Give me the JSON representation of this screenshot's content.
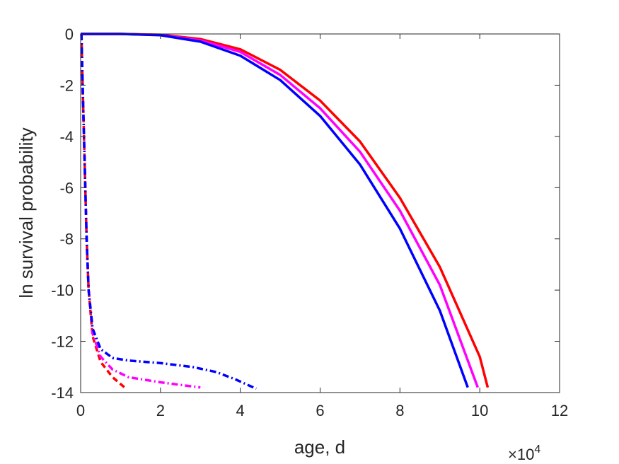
{
  "chart_data": {
    "type": "line",
    "xlabel": "age, d",
    "ylabel": "ln survival probability",
    "x_exponent_label": {
      "base": "×10",
      "power": "4"
    },
    "xlim": [
      0,
      12
    ],
    "ylim": [
      -14,
      0
    ],
    "xticks": [
      "0",
      "2",
      "4",
      "6",
      "8",
      "10",
      "12"
    ],
    "yticks": [
      "0",
      "-2",
      "-4",
      "-6",
      "-8",
      "-10",
      "-12",
      "-14"
    ],
    "grid": false,
    "legend": "none",
    "series": [
      {
        "color": "#ff0000",
        "style": "solid",
        "x": [
          0,
          1,
          2,
          3,
          4,
          5,
          6,
          7,
          8,
          9,
          10,
          10.2
        ],
        "y": [
          0,
          0,
          -0.03,
          -0.2,
          -0.6,
          -1.4,
          -2.6,
          -4.2,
          -6.4,
          -9.1,
          -12.6,
          -13.8
        ]
      },
      {
        "color": "#ff00ff",
        "style": "solid",
        "x": [
          0,
          1,
          2,
          3,
          4,
          5,
          6,
          7,
          8,
          9,
          9.95
        ],
        "y": [
          0,
          0,
          -0.04,
          -0.25,
          -0.7,
          -1.6,
          -2.9,
          -4.6,
          -6.9,
          -9.8,
          -13.8
        ]
      },
      {
        "color": "#0000ff",
        "style": "solid",
        "x": [
          0,
          1,
          2,
          3,
          4,
          5,
          6,
          7,
          8,
          9,
          9.7
        ],
        "y": [
          0,
          0,
          -0.05,
          -0.3,
          -0.85,
          -1.8,
          -3.2,
          -5.1,
          -7.6,
          -10.8,
          -13.8
        ]
      },
      {
        "color": "#ff0000",
        "style": "dashed",
        "x": [
          0.02,
          0.05,
          0.1,
          0.15,
          0.2,
          0.3,
          0.5,
          0.8,
          1.1
        ],
        "y": [
          0,
          -2,
          -5,
          -8,
          -10,
          -11.8,
          -12.8,
          -13.4,
          -13.8
        ]
      },
      {
        "color": "#ff00ff",
        "style": "dashdot",
        "x": [
          0.02,
          0.05,
          0.1,
          0.15,
          0.2,
          0.3,
          0.5,
          0.8,
          1.2,
          2.0,
          3.0
        ],
        "y": [
          0,
          -2,
          -5,
          -8,
          -10,
          -11.7,
          -12.6,
          -13.1,
          -13.4,
          -13.6,
          -13.8
        ]
      },
      {
        "color": "#0000ff",
        "style": "dashdot",
        "x": [
          0.02,
          0.05,
          0.1,
          0.15,
          0.2,
          0.3,
          0.5,
          0.8,
          1.2,
          2.0,
          2.8,
          3.4,
          3.9,
          4.4
        ],
        "y": [
          0,
          -2,
          -5,
          -8,
          -10,
          -11.5,
          -12.3,
          -12.65,
          -12.75,
          -12.85,
          -13.0,
          -13.2,
          -13.5,
          -13.85
        ]
      }
    ]
  }
}
